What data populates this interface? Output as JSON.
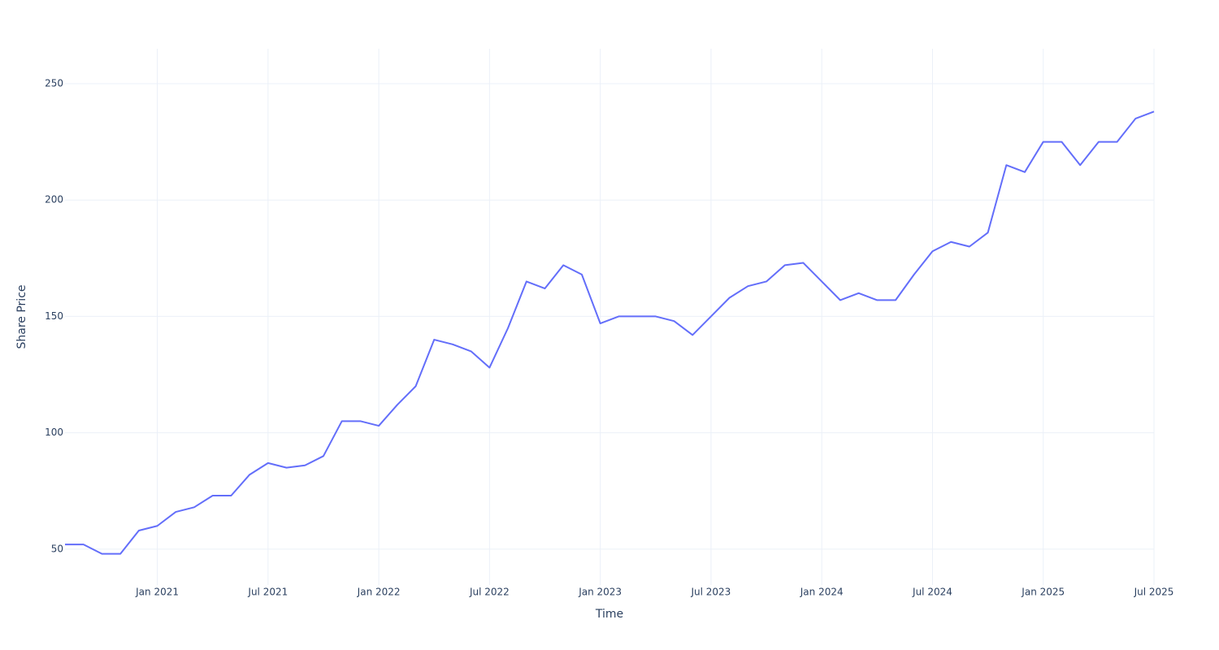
{
  "chart_data": {
    "type": "line",
    "x_label": "Time",
    "y_label": "Share Price",
    "x": [
      "2020-08",
      "2020-09",
      "2020-10",
      "2020-11",
      "2020-12",
      "2021-01",
      "2021-02",
      "2021-03",
      "2021-04",
      "2021-05",
      "2021-06",
      "2021-07",
      "2021-08",
      "2021-09",
      "2021-10",
      "2021-11",
      "2021-12",
      "2022-01",
      "2022-02",
      "2022-03",
      "2022-04",
      "2022-05",
      "2022-06",
      "2022-07",
      "2022-08",
      "2022-09",
      "2022-10",
      "2022-11",
      "2022-12",
      "2023-01",
      "2023-02",
      "2023-03",
      "2023-04",
      "2023-05",
      "2023-06",
      "2023-07",
      "2023-08",
      "2023-09",
      "2023-10",
      "2023-11",
      "2023-12",
      "2024-01",
      "2024-02",
      "2024-03",
      "2024-04",
      "2024-05",
      "2024-06",
      "2024-07",
      "2024-08",
      "2024-09",
      "2024-10",
      "2024-11",
      "2024-12",
      "2025-01",
      "2025-02",
      "2025-03",
      "2025-04",
      "2025-05",
      "2025-06",
      "2025-07"
    ],
    "series": [
      {
        "name": "Share Price",
        "color": "#636efa",
        "values": [
          52,
          52,
          48,
          48,
          58,
          60,
          66,
          68,
          73,
          73,
          82,
          87,
          85,
          86,
          90,
          105,
          105,
          103,
          112,
          120,
          140,
          138,
          135,
          128,
          145,
          165,
          162,
          172,
          168,
          147,
          150,
          150,
          150,
          148,
          142,
          150,
          158,
          163,
          165,
          172,
          173,
          165,
          157,
          160,
          157,
          157,
          168,
          178,
          182,
          180,
          186,
          215,
          212,
          225,
          225,
          215,
          225,
          225,
          235,
          238
        ]
      }
    ],
    "xlim": [
      "2020-08",
      "2025-07"
    ],
    "xticks": [
      {
        "value": "2021-01",
        "label": "Jan 2021"
      },
      {
        "value": "2021-07",
        "label": "Jul 2021"
      },
      {
        "value": "2022-01",
        "label": "Jan 2022"
      },
      {
        "value": "2022-07",
        "label": "Jul 2022"
      },
      {
        "value": "2023-01",
        "label": "Jan 2023"
      },
      {
        "value": "2023-07",
        "label": "Jul 2023"
      },
      {
        "value": "2024-01",
        "label": "Jan 2024"
      },
      {
        "value": "2024-07",
        "label": "Jul 2024"
      },
      {
        "value": "2025-01",
        "label": "Jan 2025"
      },
      {
        "value": "2025-07",
        "label": "Jul 2025"
      }
    ],
    "ylim": [
      34.6,
      265
    ],
    "yticks": [
      50,
      100,
      150,
      200,
      250
    ],
    "grid": true
  }
}
